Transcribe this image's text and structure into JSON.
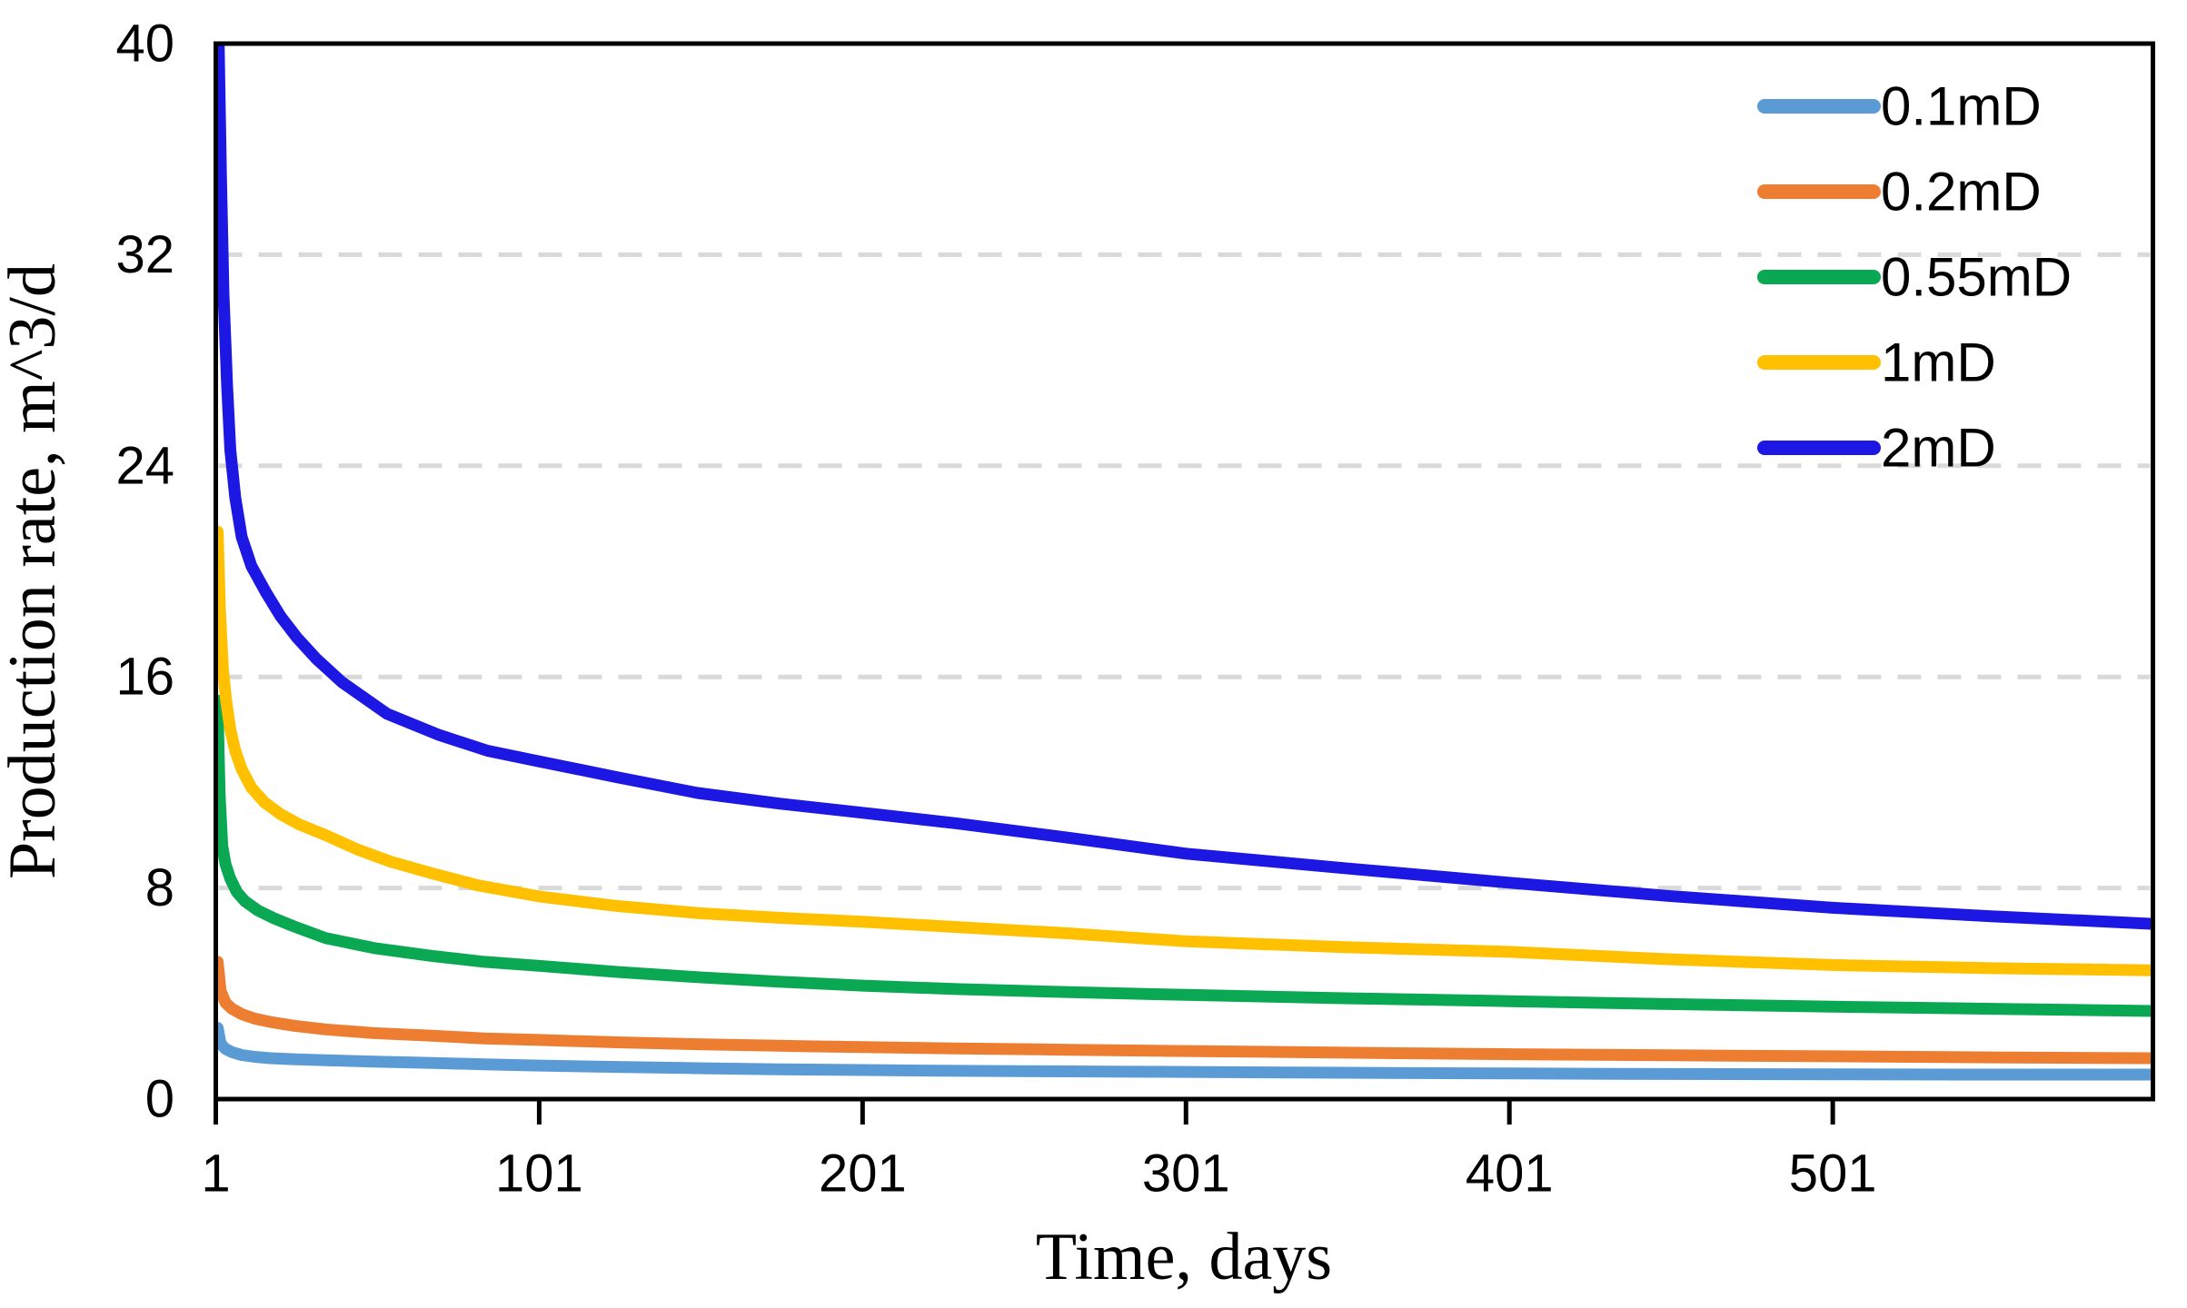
{
  "chart_data": {
    "type": "line",
    "title": "",
    "xlabel": "Time, days",
    "ylabel": "Production rate, m^3/d",
    "x_ticks": [
      1,
      101,
      201,
      301,
      401,
      501
    ],
    "xlim": [
      1,
      600
    ],
    "y_ticks": [
      0,
      8,
      16,
      24,
      32,
      40
    ],
    "ylim": [
      0,
      40
    ],
    "grid": "horizontal-dashed",
    "legend_position": "top-right-inside",
    "series": [
      {
        "name": "0.1mD",
        "color": "#5B9BD5",
        "points": [
          [
            1,
            2.7
          ],
          [
            1.6,
            2.7
          ],
          [
            2.5,
            2.1
          ],
          [
            4,
            1.9
          ],
          [
            6,
            1.78
          ],
          [
            9,
            1.67
          ],
          [
            13,
            1.6
          ],
          [
            18,
            1.55
          ],
          [
            25,
            1.51
          ],
          [
            35,
            1.47
          ],
          [
            50,
            1.42
          ],
          [
            68,
            1.37
          ],
          [
            84,
            1.32
          ],
          [
            101,
            1.27
          ],
          [
            125,
            1.22
          ],
          [
            150,
            1.17
          ],
          [
            175,
            1.13
          ],
          [
            201,
            1.1
          ],
          [
            230,
            1.07
          ],
          [
            265,
            1.05
          ],
          [
            301,
            1.03
          ],
          [
            350,
            1.0
          ],
          [
            401,
            0.97
          ],
          [
            450,
            0.95
          ],
          [
            501,
            0.94
          ],
          [
            550,
            0.93
          ],
          [
            600,
            0.93
          ]
        ]
      },
      {
        "name": "0.2mD",
        "color": "#ED7D31",
        "points": [
          [
            1,
            5.2
          ],
          [
            1.6,
            5.2
          ],
          [
            2.5,
            4.1
          ],
          [
            4,
            3.65
          ],
          [
            6,
            3.42
          ],
          [
            9,
            3.22
          ],
          [
            13,
            3.05
          ],
          [
            18,
            2.92
          ],
          [
            25,
            2.78
          ],
          [
            35,
            2.64
          ],
          [
            50,
            2.5
          ],
          [
            68,
            2.4
          ],
          [
            84,
            2.3
          ],
          [
            101,
            2.24
          ],
          [
            125,
            2.15
          ],
          [
            150,
            2.08
          ],
          [
            175,
            2.02
          ],
          [
            201,
            1.97
          ],
          [
            230,
            1.92
          ],
          [
            265,
            1.87
          ],
          [
            301,
            1.82
          ],
          [
            350,
            1.76
          ],
          [
            401,
            1.7
          ],
          [
            450,
            1.66
          ],
          [
            501,
            1.62
          ],
          [
            550,
            1.58
          ],
          [
            600,
            1.55
          ]
        ]
      },
      {
        "name": "0.55mD",
        "color": "#0AA852",
        "points": [
          [
            1,
            15.1
          ],
          [
            1.5,
            15.1
          ],
          [
            2.2,
            11.5
          ],
          [
            3,
            9.6
          ],
          [
            4,
            8.9
          ],
          [
            5.5,
            8.35
          ],
          [
            7.5,
            7.85
          ],
          [
            10,
            7.5
          ],
          [
            14,
            7.15
          ],
          [
            19,
            6.85
          ],
          [
            25,
            6.55
          ],
          [
            35,
            6.1
          ],
          [
            50,
            5.72
          ],
          [
            68,
            5.42
          ],
          [
            84,
            5.2
          ],
          [
            101,
            5.05
          ],
          [
            125,
            4.82
          ],
          [
            150,
            4.62
          ],
          [
            175,
            4.45
          ],
          [
            201,
            4.3
          ],
          [
            230,
            4.17
          ],
          [
            265,
            4.05
          ],
          [
            301,
            3.95
          ],
          [
            350,
            3.82
          ],
          [
            401,
            3.71
          ],
          [
            450,
            3.6
          ],
          [
            501,
            3.5
          ],
          [
            550,
            3.42
          ],
          [
            600,
            3.34
          ]
        ]
      },
      {
        "name": "1mD",
        "color": "#FFC000",
        "points": [
          [
            1,
            21.5
          ],
          [
            1.6,
            21.5
          ],
          [
            2.3,
            18.5
          ],
          [
            3.2,
            16.3
          ],
          [
            4.2,
            15.1
          ],
          [
            5.5,
            14.0
          ],
          [
            7,
            13.2
          ],
          [
            9,
            12.5
          ],
          [
            12,
            11.8
          ],
          [
            16,
            11.25
          ],
          [
            21,
            10.8
          ],
          [
            27,
            10.4
          ],
          [
            35,
            10.0
          ],
          [
            45,
            9.45
          ],
          [
            55,
            9.0
          ],
          [
            68,
            8.55
          ],
          [
            82,
            8.1
          ],
          [
            101,
            7.68
          ],
          [
            125,
            7.32
          ],
          [
            150,
            7.05
          ],
          [
            175,
            6.87
          ],
          [
            201,
            6.72
          ],
          [
            230,
            6.52
          ],
          [
            265,
            6.28
          ],
          [
            301,
            5.98
          ],
          [
            350,
            5.76
          ],
          [
            401,
            5.58
          ],
          [
            450,
            5.3
          ],
          [
            501,
            5.08
          ],
          [
            550,
            4.96
          ],
          [
            600,
            4.88
          ]
        ]
      },
      {
        "name": "2mD",
        "color": "#1D17E3",
        "points": [
          [
            1,
            40
          ],
          [
            1.9,
            40
          ],
          [
            2.6,
            35
          ],
          [
            3.4,
            30.5
          ],
          [
            4.5,
            27
          ],
          [
            5.5,
            24.6
          ],
          [
            7,
            22.8
          ],
          [
            9,
            21.3
          ],
          [
            12,
            20.2
          ],
          [
            16.5,
            19.2
          ],
          [
            21,
            18.3
          ],
          [
            26,
            17.5
          ],
          [
            32,
            16.7
          ],
          [
            40,
            15.8
          ],
          [
            54,
            14.6
          ],
          [
            70,
            13.8
          ],
          [
            85,
            13.2
          ],
          [
            101,
            12.8
          ],
          [
            125,
            12.2
          ],
          [
            150,
            11.6
          ],
          [
            175,
            11.2
          ],
          [
            201,
            10.85
          ],
          [
            230,
            10.45
          ],
          [
            265,
            9.9
          ],
          [
            301,
            9.3
          ],
          [
            350,
            8.75
          ],
          [
            401,
            8.2
          ],
          [
            450,
            7.7
          ],
          [
            501,
            7.25
          ],
          [
            550,
            6.93
          ],
          [
            600,
            6.64
          ]
        ]
      }
    ]
  },
  "colors": {
    "gridline": "#D9D9D9",
    "axis": "#000000",
    "background": "#FFFFFF",
    "text": "#000000"
  }
}
